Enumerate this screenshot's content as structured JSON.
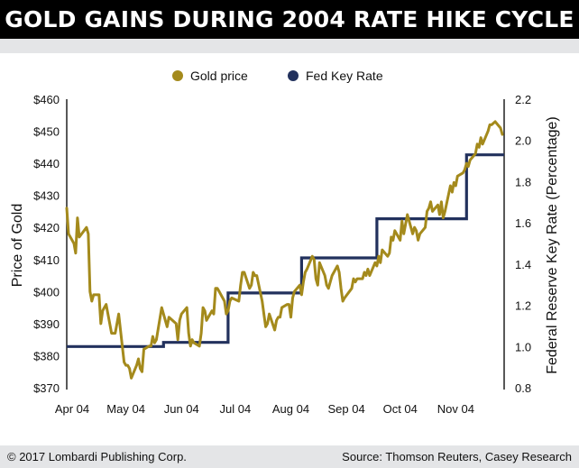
{
  "title": "GOLD GAINS DURING 2004 RATE HIKE CYCLE",
  "footer": {
    "copyright": "© 2017 Lombardi Publishing Corp.",
    "source": "Source: Thomson Reuters, Casey Research"
  },
  "colors": {
    "gold": "#a48a1c",
    "rate": "#22315d",
    "title_bg": "#000000",
    "band": "#e4e5e7"
  },
  "chart_data": {
    "type": "line",
    "legend_position": "top-center",
    "grid": false,
    "y_left": {
      "label": "Price of Gold",
      "ticks": [
        "$460",
        "$450",
        "$440",
        "$430",
        "$420",
        "$410",
        "$400",
        "$390",
        "$380",
        "$370"
      ],
      "range": [
        370,
        460
      ]
    },
    "y_right": {
      "label": "Federal Reserve Key Rate (Percentage)",
      "ticks": [
        "2.2",
        "2.0",
        "1.8",
        "1.6",
        "1.4",
        "1.2",
        "1.0",
        "0.8"
      ],
      "range": [
        0.8,
        2.2
      ]
    },
    "x_axis": {
      "ticks": [
        "Apr 04",
        "May 04",
        "Jun 04",
        "Jul 04",
        "Aug 04",
        "Sep 04",
        "Oct 04",
        "Nov 04"
      ],
      "range": [
        "2004-04-01",
        "2004-12-01"
      ]
    },
    "series": [
      {
        "name": "Gold price",
        "axis": "left",
        "points": [
          [
            "2004-04-01",
            426
          ],
          [
            "2004-04-02",
            418
          ],
          [
            "2004-04-05",
            415
          ],
          [
            "2004-04-06",
            412
          ],
          [
            "2004-04-07",
            423
          ],
          [
            "2004-04-08",
            417
          ],
          [
            "2004-04-12",
            420
          ],
          [
            "2004-04-13",
            418
          ],
          [
            "2004-04-14",
            400
          ],
          [
            "2004-04-15",
            397
          ],
          [
            "2004-04-16",
            399
          ],
          [
            "2004-04-19",
            399
          ],
          [
            "2004-04-20",
            390
          ],
          [
            "2004-04-21",
            394
          ],
          [
            "2004-04-22",
            395
          ],
          [
            "2004-04-23",
            396
          ],
          [
            "2004-04-26",
            387
          ],
          [
            "2004-04-27",
            387
          ],
          [
            "2004-04-28",
            387
          ],
          [
            "2004-04-29",
            390
          ],
          [
            "2004-04-30",
            393
          ],
          [
            "2004-05-03",
            378
          ],
          [
            "2004-05-04",
            377
          ],
          [
            "2004-05-05",
            377
          ],
          [
            "2004-05-06",
            376
          ],
          [
            "2004-05-07",
            373
          ],
          [
            "2004-05-10",
            377
          ],
          [
            "2004-05-11",
            379
          ],
          [
            "2004-05-12",
            376
          ],
          [
            "2004-05-13",
            375
          ],
          [
            "2004-05-14",
            382
          ],
          [
            "2004-05-17",
            383
          ],
          [
            "2004-05-18",
            383
          ],
          [
            "2004-05-19",
            386
          ],
          [
            "2004-05-20",
            384
          ],
          [
            "2004-05-21",
            385
          ],
          [
            "2004-05-24",
            395
          ],
          [
            "2004-05-25",
            393
          ],
          [
            "2004-05-26",
            391
          ],
          [
            "2004-05-27",
            389
          ],
          [
            "2004-05-28",
            392
          ],
          [
            "2004-06-01",
            390
          ],
          [
            "2004-06-02",
            385
          ],
          [
            "2004-06-03",
            391
          ],
          [
            "2004-06-04",
            393
          ],
          [
            "2004-06-07",
            395
          ],
          [
            "2004-06-08",
            387
          ],
          [
            "2004-06-09",
            383
          ],
          [
            "2004-06-10",
            385
          ],
          [
            "2004-06-11",
            384
          ],
          [
            "2004-06-14",
            383
          ],
          [
            "2004-06-15",
            387
          ],
          [
            "2004-06-16",
            395
          ],
          [
            "2004-06-17",
            394
          ],
          [
            "2004-06-18",
            391
          ],
          [
            "2004-06-21",
            394
          ],
          [
            "2004-06-22",
            393
          ],
          [
            "2004-06-23",
            401
          ],
          [
            "2004-06-24",
            401
          ],
          [
            "2004-06-25",
            400
          ],
          [
            "2004-06-28",
            397
          ],
          [
            "2004-06-29",
            393
          ],
          [
            "2004-06-30",
            394
          ],
          [
            "2004-07-01",
            397
          ],
          [
            "2004-07-02",
            398
          ],
          [
            "2004-07-06",
            397
          ],
          [
            "2004-07-07",
            402
          ],
          [
            "2004-07-08",
            406
          ],
          [
            "2004-07-09",
            406
          ],
          [
            "2004-07-12",
            401
          ],
          [
            "2004-07-13",
            402
          ],
          [
            "2004-07-14",
            406
          ],
          [
            "2004-07-15",
            405
          ],
          [
            "2004-07-16",
            405
          ],
          [
            "2004-07-19",
            397
          ],
          [
            "2004-07-20",
            393
          ],
          [
            "2004-07-21",
            389
          ],
          [
            "2004-07-22",
            390
          ],
          [
            "2004-07-23",
            393
          ],
          [
            "2004-07-26",
            388
          ],
          [
            "2004-07-27",
            391
          ],
          [
            "2004-07-28",
            392
          ],
          [
            "2004-07-29",
            392
          ],
          [
            "2004-07-30",
            395
          ],
          [
            "2004-08-02",
            396
          ],
          [
            "2004-08-03",
            396
          ],
          [
            "2004-08-04",
            392
          ],
          [
            "2004-08-05",
            398
          ],
          [
            "2004-08-06",
            400
          ],
          [
            "2004-08-09",
            402
          ],
          [
            "2004-08-10",
            399
          ],
          [
            "2004-08-11",
            403
          ],
          [
            "2004-08-12",
            406
          ],
          [
            "2004-08-13",
            407
          ],
          [
            "2004-08-16",
            411
          ],
          [
            "2004-08-17",
            410
          ],
          [
            "2004-08-18",
            404
          ],
          [
            "2004-08-19",
            402
          ],
          [
            "2004-08-20",
            409
          ],
          [
            "2004-08-23",
            405
          ],
          [
            "2004-08-24",
            402
          ],
          [
            "2004-08-25",
            401
          ],
          [
            "2004-08-26",
            403
          ],
          [
            "2004-08-27",
            405
          ],
          [
            "2004-08-30",
            408
          ],
          [
            "2004-08-31",
            406
          ],
          [
            "2004-09-01",
            401
          ],
          [
            "2004-09-02",
            397
          ],
          [
            "2004-09-03",
            398
          ],
          [
            "2004-09-07",
            401
          ],
          [
            "2004-09-08",
            404
          ],
          [
            "2004-09-09",
            403
          ],
          [
            "2004-09-10",
            404
          ],
          [
            "2004-09-13",
            404
          ],
          [
            "2004-09-14",
            406
          ],
          [
            "2004-09-15",
            405
          ],
          [
            "2004-09-16",
            407
          ],
          [
            "2004-09-17",
            405
          ],
          [
            "2004-09-20",
            409
          ],
          [
            "2004-09-21",
            408
          ],
          [
            "2004-09-22",
            411
          ],
          [
            "2004-09-23",
            409
          ],
          [
            "2004-09-24",
            413
          ],
          [
            "2004-09-27",
            411
          ],
          [
            "2004-09-28",
            412
          ],
          [
            "2004-09-29",
            417
          ],
          [
            "2004-09-30",
            416
          ],
          [
            "2004-10-01",
            419
          ],
          [
            "2004-10-04",
            416
          ],
          [
            "2004-10-05",
            422
          ],
          [
            "2004-10-06",
            418
          ],
          [
            "2004-10-07",
            421
          ],
          [
            "2004-10-08",
            424
          ],
          [
            "2004-10-11",
            418
          ],
          [
            "2004-10-12",
            420
          ],
          [
            "2004-10-13",
            419
          ],
          [
            "2004-10-14",
            416
          ],
          [
            "2004-10-15",
            418
          ],
          [
            "2004-10-18",
            420
          ],
          [
            "2004-10-19",
            425
          ],
          [
            "2004-10-20",
            426
          ],
          [
            "2004-10-21",
            428
          ],
          [
            "2004-10-22",
            425
          ],
          [
            "2004-10-25",
            427
          ],
          [
            "2004-10-26",
            424
          ],
          [
            "2004-10-27",
            428
          ],
          [
            "2004-10-28",
            423
          ],
          [
            "2004-10-29",
            425
          ],
          [
            "2004-11-01",
            433
          ],
          [
            "2004-11-02",
            431
          ],
          [
            "2004-11-03",
            434
          ],
          [
            "2004-11-04",
            433
          ],
          [
            "2004-11-05",
            436
          ],
          [
            "2004-11-08",
            437
          ],
          [
            "2004-11-09",
            438
          ],
          [
            "2004-11-10",
            440
          ],
          [
            "2004-11-11",
            439
          ],
          [
            "2004-11-12",
            441
          ],
          [
            "2004-11-15",
            443
          ],
          [
            "2004-11-16",
            446
          ],
          [
            "2004-11-17",
            445
          ],
          [
            "2004-11-18",
            448
          ],
          [
            "2004-11-19",
            446
          ],
          [
            "2004-11-22",
            450
          ],
          [
            "2004-11-23",
            452
          ],
          [
            "2004-11-24",
            452
          ],
          [
            "2004-11-26",
            453
          ],
          [
            "2004-11-29",
            451
          ],
          [
            "2004-11-30",
            449
          ]
        ]
      },
      {
        "name": "Fed Key Rate",
        "axis": "right",
        "step": true,
        "points": [
          [
            "2004-04-01",
            1.0
          ],
          [
            "2004-05-25",
            1.02
          ],
          [
            "2004-06-30",
            1.26
          ],
          [
            "2004-08-10",
            1.43
          ],
          [
            "2004-09-21",
            1.62
          ],
          [
            "2004-11-10",
            1.93
          ],
          [
            "2004-12-01",
            1.93
          ]
        ]
      }
    ]
  }
}
